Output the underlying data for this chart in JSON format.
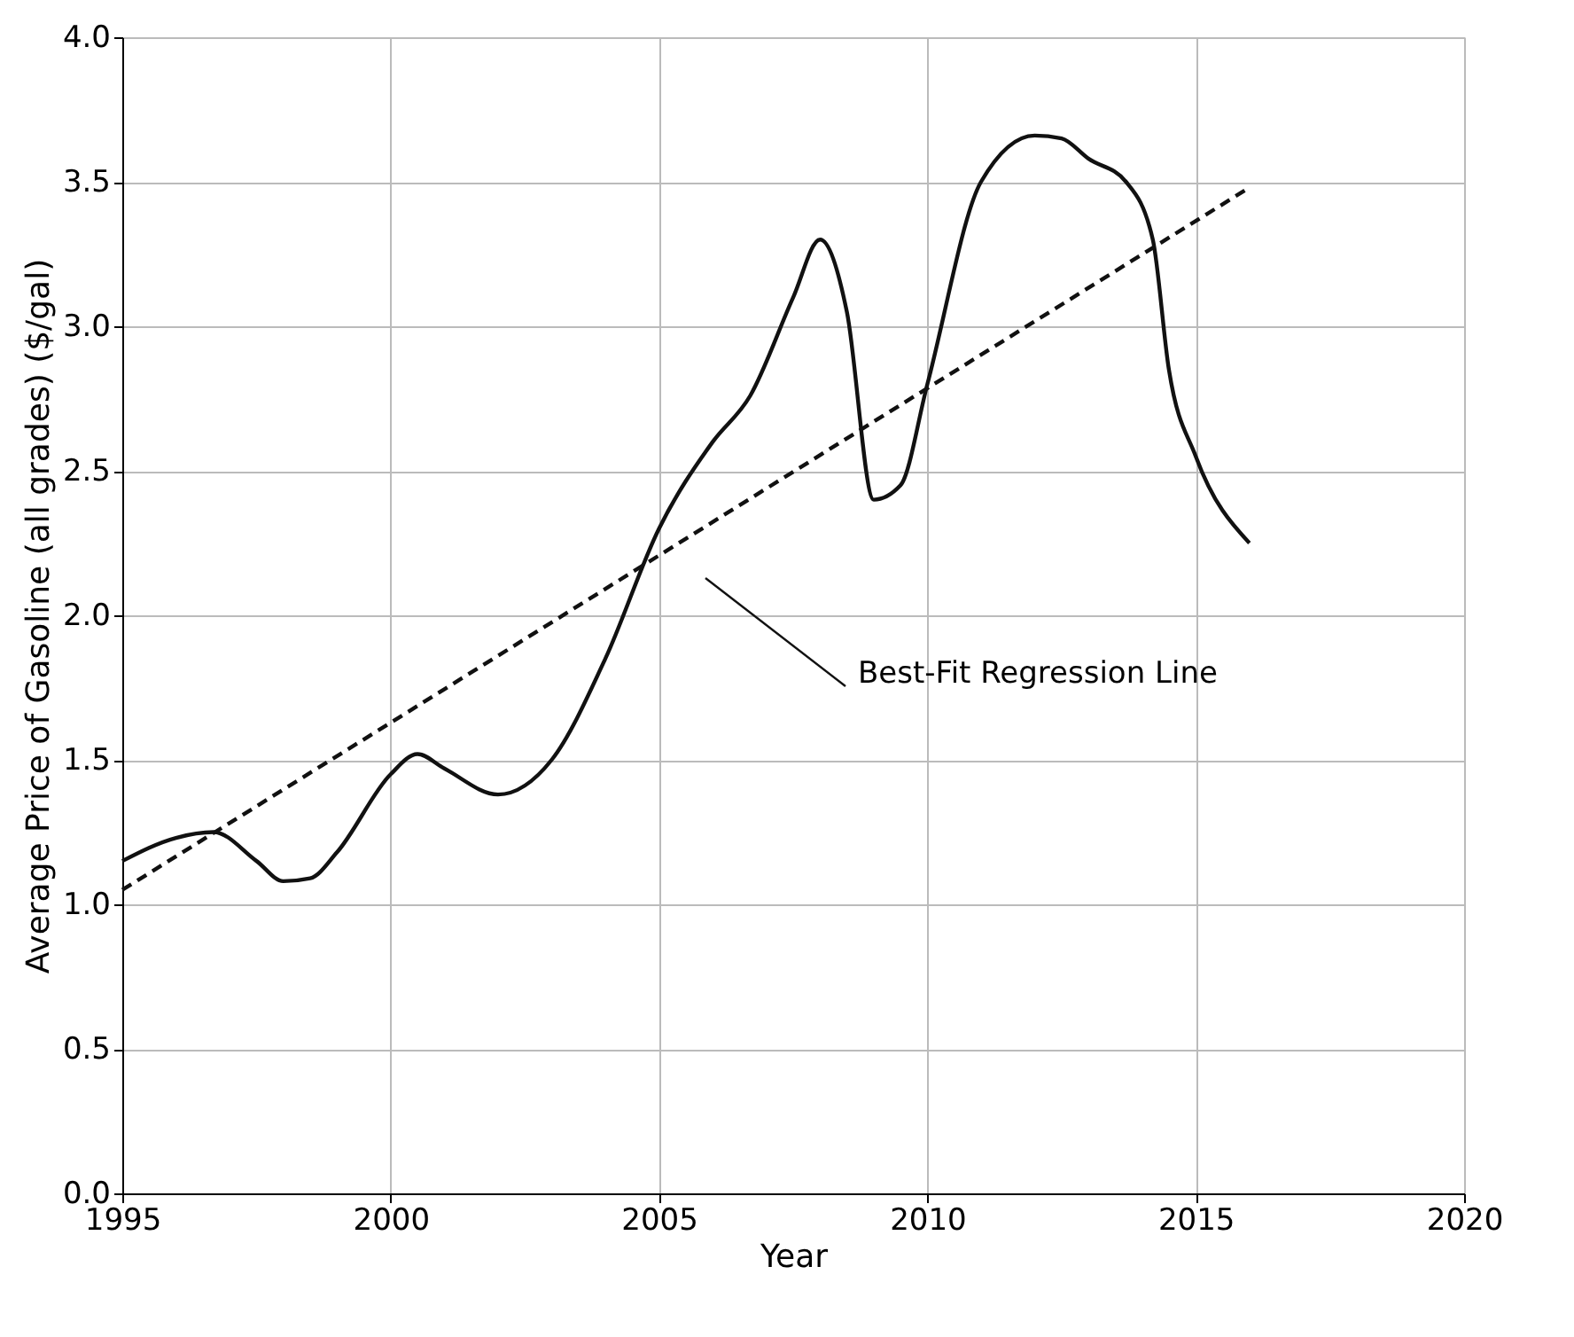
{
  "chart_data": {
    "type": "line",
    "xlabel": "Year",
    "ylabel": "Average Price of Gasoline (all grades) ($/gal)",
    "xlim": [
      1995,
      2020
    ],
    "xticks": [
      1995,
      2000,
      2005,
      2010,
      2015,
      2020
    ],
    "ylim": [
      0,
      4
    ],
    "yticks": [
      {
        "value": 0,
        "label": "0.0"
      },
      {
        "value": 0.5,
        "label": "0.5"
      },
      {
        "value": 1,
        "label": "1.0"
      },
      {
        "value": 1.5,
        "label": "1.5"
      },
      {
        "value": 2,
        "label": "2.0"
      },
      {
        "value": 2.5,
        "label": "2.5"
      },
      {
        "value": 3,
        "label": "3.0"
      },
      {
        "value": 3.5,
        "label": "3.5"
      },
      {
        "value": 4,
        "label": "4.0"
      }
    ],
    "grid": true,
    "marker": "none",
    "series": [
      {
        "color": "#111111",
        "line_style": "solid",
        "x": [
          1995,
          1996,
          1996.7,
          1997.5,
          1998,
          1998.5,
          1999,
          2000,
          2000.5,
          2001,
          2002,
          2003,
          2004,
          2005,
          2006,
          2006.7,
          2007.5,
          2008,
          2008.5,
          2009,
          2009.5,
          2010,
          2011,
          2012,
          2012.5,
          2013,
          2013.7,
          2014.2,
          2014.5,
          2015,
          2016
        ],
        "values": [
          1.15,
          1.23,
          1.25,
          1.15,
          1.08,
          1.09,
          1.18,
          1.45,
          1.52,
          1.47,
          1.38,
          1.5,
          1.85,
          2.3,
          2.6,
          2.76,
          3.1,
          3.3,
          3.05,
          2.4,
          2.45,
          2.8,
          3.5,
          3.66,
          3.65,
          3.58,
          3.5,
          3.3,
          2.85,
          2.55,
          2.25
        ]
      },
      {
        "color": "#111111",
        "line_style": "dashed",
        "x": [
          1995,
          2016
        ],
        "values": [
          1.05,
          3.48
        ]
      }
    ],
    "annotations": [
      "Best-Fit Regression Line"
    ]
  }
}
